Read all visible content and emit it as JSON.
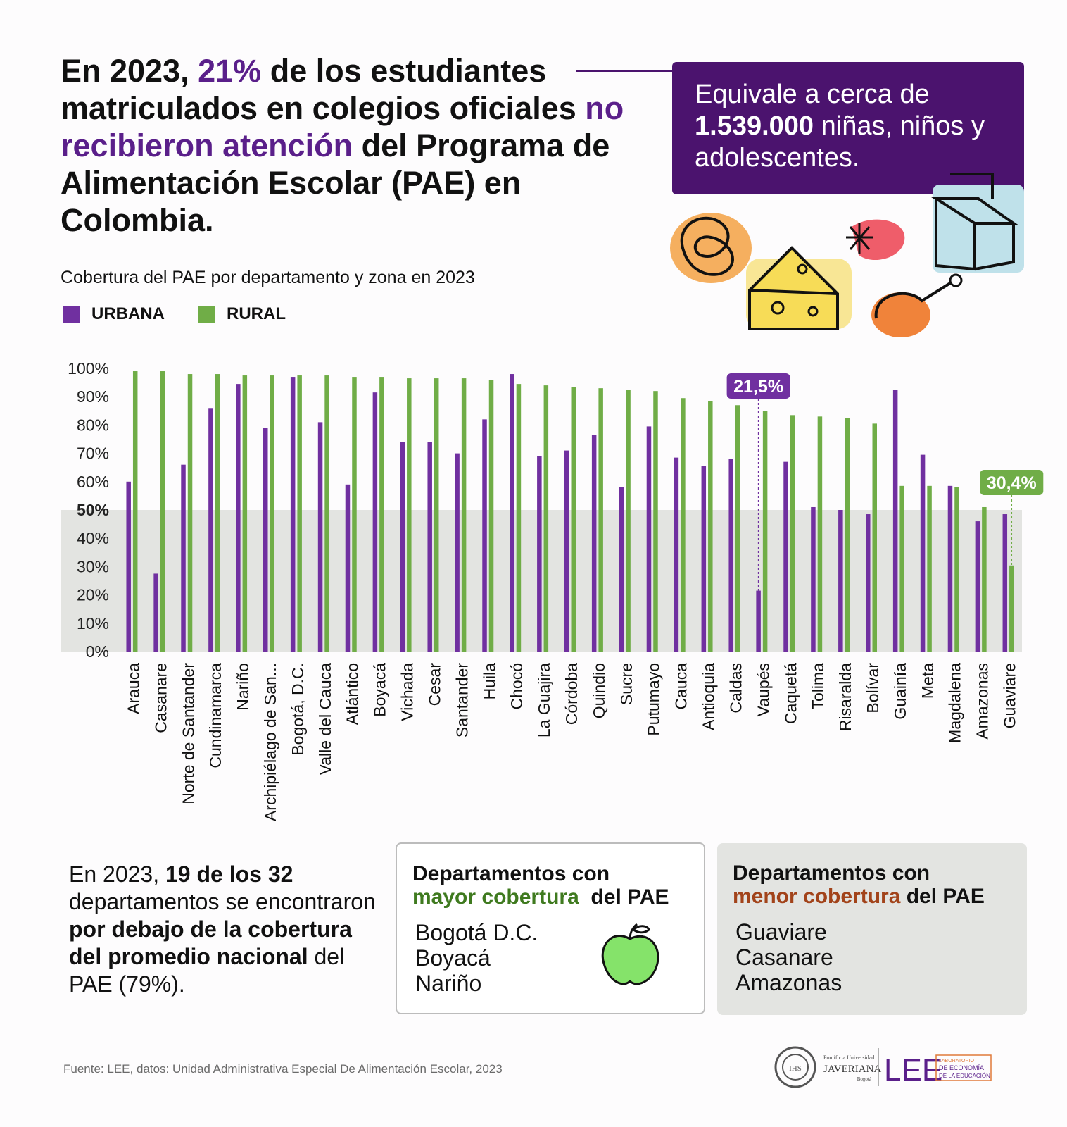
{
  "headline": {
    "part1": "En 2023, ",
    "highlight1": "21%",
    "part2": " de los estudiantes matriculados en colegios oficiales ",
    "highlight2": "no recibieron atención",
    "part3": " del Programa de Alimentación Escolar (PAE) en Colombia."
  },
  "callout": {
    "line1": "Equivale a cerca de",
    "bold": "1.539.000",
    "line2": " niñas, niños y adolescentes."
  },
  "chart_data": {
    "type": "bar",
    "title": "Cobertura del PAE por departamento y zona en 2023",
    "categories": [
      "Arauca",
      "Casanare",
      "Norte de Santander",
      "Cundinamarca",
      "Nariño",
      "Archipiélago de San...",
      "Bogotá, D.C.",
      "Valle del Cauca",
      "Atlántico",
      "Boyacá",
      "Vichada",
      "Cesar",
      "Santander",
      "Huila",
      "Chocó",
      "La Guajira",
      "Córdoba",
      "Quindio",
      "Sucre",
      "Putumayo",
      "Cauca",
      "Antioquia",
      "Caldas",
      "Vaupés",
      "Caquetá",
      "Tolima",
      "Risaralda",
      "Bolívar",
      "Guainía",
      "Meta",
      "Magdalena",
      "Amazonas",
      "Guaviare"
    ],
    "series": [
      {
        "name": "URBANA",
        "color": "#7030a0",
        "values": [
          60,
          27.5,
          66,
          86,
          94.5,
          79,
          97,
          81,
          59,
          91.5,
          74,
          74,
          70,
          82,
          98,
          69,
          71,
          76.5,
          58,
          79.5,
          68.5,
          65.5,
          68,
          21.5,
          67,
          51,
          50,
          48.5,
          92.5,
          69.5,
          58.5,
          46,
          48.5
        ]
      },
      {
        "name": "RURAL",
        "color": "#70ad47",
        "values": [
          99,
          99,
          98,
          98,
          97.5,
          97.5,
          97.5,
          97.5,
          97,
          97,
          96.5,
          96.5,
          96.5,
          96,
          94.5,
          94,
          93.5,
          93,
          92.5,
          92,
          89.5,
          88.5,
          87,
          85,
          83.5,
          83,
          82.5,
          80.5,
          58.5,
          58.5,
          58,
          51,
          30.4
        ]
      }
    ],
    "y_ticks": [
      "0%",
      "10%",
      "20%",
      "30%",
      "40%",
      "50%",
      "60%",
      "70%",
      "80%",
      "90%",
      "100%"
    ],
    "ylim": [
      0,
      100
    ],
    "reference_band": {
      "from": 0,
      "to": 50
    },
    "annotations": [
      {
        "label": "21,5%",
        "category": "Vaupés",
        "series": "URBANA",
        "value": 21.5
      },
      {
        "label": "30,4%",
        "category": "Guaviare",
        "series": "RURAL",
        "value": 30.4
      }
    ],
    "legend": "top-left"
  },
  "summary": {
    "p1": "En 2023, ",
    "b1": "19 de los 32",
    "p2": " departamentos se encontraron ",
    "b2": "por debajo de la cobertura del promedio nacional",
    "p3": " del PAE (79%)."
  },
  "box_high": {
    "title_a": "Departamentos con",
    "title_b": "mayor cobertura",
    "title_c": " del PAE",
    "items": [
      "Bogotá D.C.",
      "Boyacá",
      "Nariño"
    ]
  },
  "box_low": {
    "title_a": "Departamentos con",
    "title_b": "menor cobertura",
    "title_c": " del PAE",
    "items": [
      "Guaviare",
      "Casanare",
      "Amazonas"
    ]
  },
  "source": "Fuente: LEE, datos: Unidad Administrativa Especial De Alimentación Escolar, 2023",
  "logos": {
    "javeriana_small": "Pontificia Universidad",
    "javeriana": "JAVERIANA",
    "bogota": "Bogotá",
    "lee": "LEE",
    "lee_sub1": "LABORATORIO",
    "lee_sub2": "DE ECONOMÍA",
    "lee_sub3": "DE LA EDUCACIÓN"
  },
  "colors": {
    "purple_dark": "#4b136e",
    "urbana": "#7030a0",
    "rural": "#70ad47",
    "band": "#e3e4e1"
  }
}
